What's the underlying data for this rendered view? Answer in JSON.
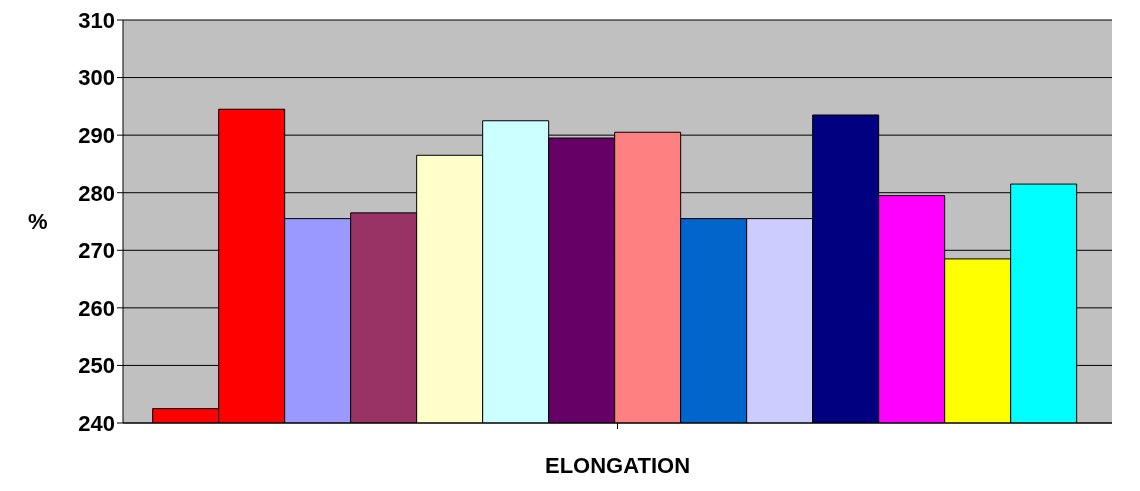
{
  "chart_data": {
    "type": "bar",
    "xlabel": "ELONGATION",
    "ylabel": "%",
    "categories": [
      null
    ],
    "series": [
      {
        "color": "#ff0000",
        "values": [
          242.5
        ]
      },
      {
        "color": "#ff0000",
        "values": [
          294.5
        ]
      },
      {
        "color": "#9999ff",
        "values": [
          275.5
        ]
      },
      {
        "color": "#993366",
        "values": [
          276.5
        ]
      },
      {
        "color": "#ffffcc",
        "values": [
          286.5
        ]
      },
      {
        "color": "#ccffff",
        "values": [
          292.5
        ]
      },
      {
        "color": "#660066",
        "values": [
          289.5
        ]
      },
      {
        "color": "#ff8080",
        "values": [
          290.5
        ]
      },
      {
        "color": "#0066cc",
        "values": [
          275.5
        ]
      },
      {
        "color": "#ccccff",
        "values": [
          275.5
        ]
      },
      {
        "color": "#000080",
        "values": [
          293.5
        ]
      },
      {
        "color": "#ff00ff",
        "values": [
          279.5
        ]
      },
      {
        "color": "#ffff00",
        "values": [
          268.5
        ]
      },
      {
        "color": "#00ffff",
        "values": [
          281.5
        ]
      }
    ],
    "ylim": [
      240,
      310
    ],
    "yticks": [
      240,
      250,
      260,
      270,
      280,
      290,
      300,
      310
    ],
    "grid": "y",
    "legend": false
  }
}
